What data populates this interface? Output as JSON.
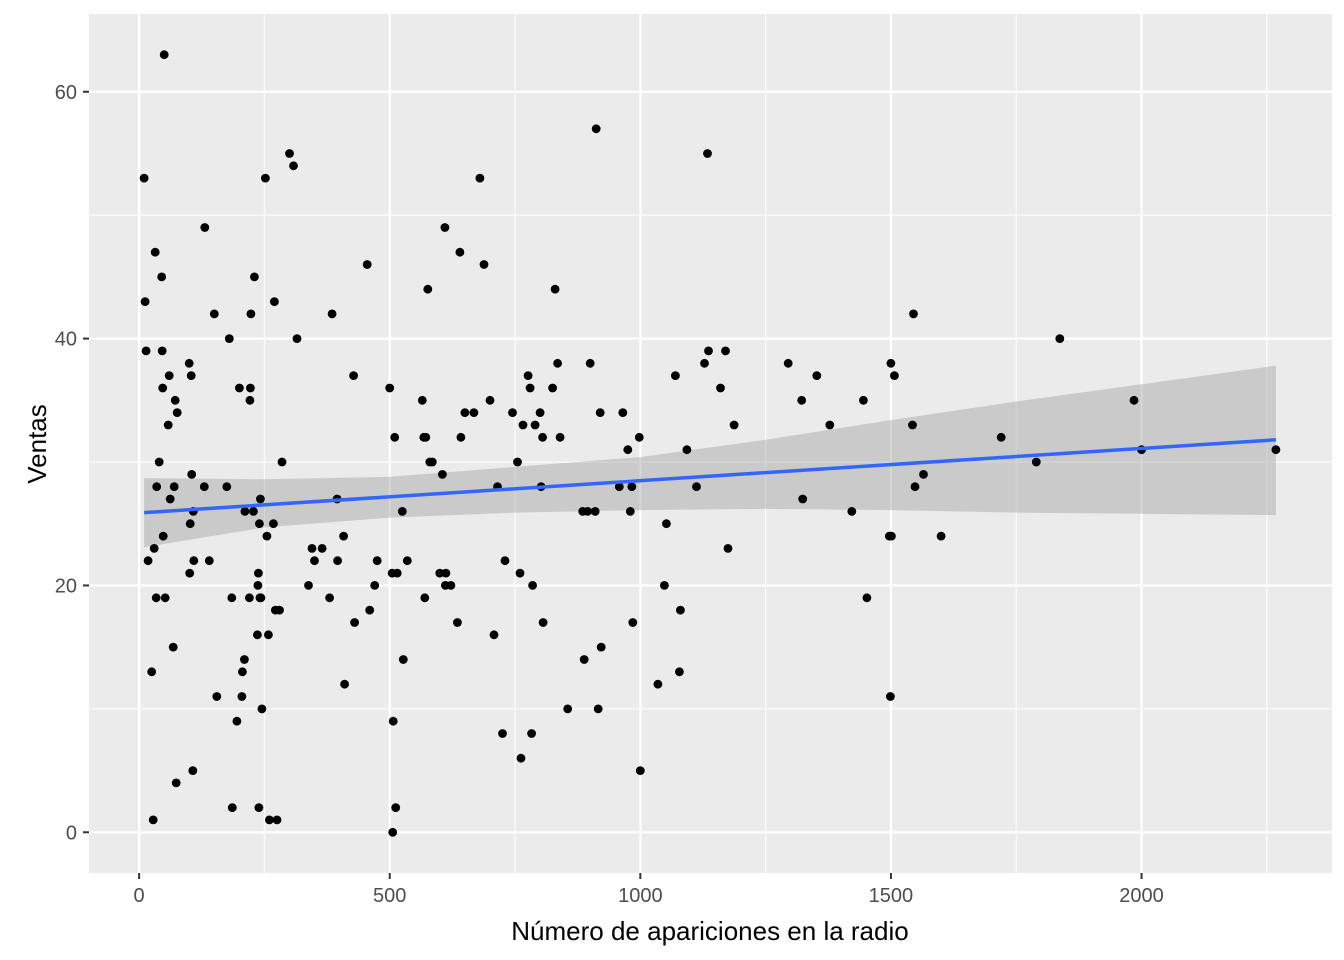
{
  "chart_data": {
    "type": "scatter",
    "title": "",
    "xlabel": "Número de apariciones en la radio",
    "ylabel": "Ventas",
    "xlim": [
      -100,
      2380
    ],
    "ylim": [
      -3.3,
      66.3
    ],
    "x_ticks": [
      0,
      500,
      1000,
      1500,
      2000
    ],
    "y_ticks": [
      0,
      20,
      40,
      60
    ],
    "x_tick_labels": [
      "0",
      "500",
      "1000",
      "1500",
      "2000"
    ],
    "y_tick_labels": [
      "0",
      "20",
      "40",
      "60"
    ],
    "grid": true,
    "legend": "none",
    "colors": {
      "panel": "#ebebeb",
      "grid": "#ffffff",
      "points": "#000000",
      "fit_line": "#3366ff",
      "confidence_band": "#c6c6c6"
    },
    "points": [
      [
        10,
        53
      ],
      [
        12,
        43
      ],
      [
        14,
        39
      ],
      [
        18,
        22
      ],
      [
        25,
        13
      ],
      [
        28,
        1
      ],
      [
        30,
        23
      ],
      [
        32,
        47
      ],
      [
        34,
        19
      ],
      [
        35,
        28
      ],
      [
        40,
        30
      ],
      [
        45,
        45
      ],
      [
        46,
        39
      ],
      [
        47,
        36
      ],
      [
        48,
        24
      ],
      [
        50,
        63
      ],
      [
        52,
        19
      ],
      [
        58,
        33
      ],
      [
        60,
        37
      ],
      [
        62,
        27
      ],
      [
        68,
        15
      ],
      [
        70,
        28
      ],
      [
        72,
        35
      ],
      [
        74,
        4
      ],
      [
        76,
        34
      ],
      [
        100,
        38
      ],
      [
        101,
        21
      ],
      [
        102,
        25
      ],
      [
        104,
        37
      ],
      [
        105,
        29
      ],
      [
        107,
        5
      ],
      [
        108,
        26
      ],
      [
        109,
        22
      ],
      [
        130,
        28
      ],
      [
        131,
        49
      ],
      [
        140,
        22
      ],
      [
        150,
        42
      ],
      [
        155,
        11
      ],
      [
        175,
        28
      ],
      [
        180,
        40
      ],
      [
        185,
        19
      ],
      [
        186,
        2
      ],
      [
        195,
        9
      ],
      [
        200,
        36
      ],
      [
        205,
        11
      ],
      [
        206,
        13
      ],
      [
        210,
        14
      ],
      [
        211,
        26
      ],
      [
        220,
        19
      ],
      [
        221,
        35
      ],
      [
        222,
        36
      ],
      [
        223,
        42
      ],
      [
        228,
        26
      ],
      [
        230,
        45
      ],
      [
        236,
        16
      ],
      [
        237,
        20
      ],
      [
        238,
        21
      ],
      [
        239,
        2
      ],
      [
        240,
        25
      ],
      [
        241,
        19
      ],
      [
        242,
        27
      ],
      [
        243,
        19
      ],
      [
        245,
        10
      ],
      [
        252,
        53
      ],
      [
        255,
        24
      ],
      [
        258,
        16
      ],
      [
        260,
        1
      ],
      [
        268,
        25
      ],
      [
        270,
        43
      ],
      [
        272,
        18
      ],
      [
        275,
        1
      ],
      [
        280,
        18
      ],
      [
        285,
        30
      ],
      [
        300,
        55
      ],
      [
        308,
        54
      ],
      [
        315,
        40
      ],
      [
        338,
        20
      ],
      [
        345,
        23
      ],
      [
        350,
        22
      ],
      [
        365,
        23
      ],
      [
        380,
        19
      ],
      [
        385,
        42
      ],
      [
        395,
        27
      ],
      [
        396,
        22
      ],
      [
        408,
        24
      ],
      [
        410,
        12
      ],
      [
        428,
        37
      ],
      [
        430,
        17
      ],
      [
        455,
        46
      ],
      [
        460,
        18
      ],
      [
        470,
        20
      ],
      [
        475,
        22
      ],
      [
        500,
        36
      ],
      [
        505,
        21
      ],
      [
        506,
        0
      ],
      [
        507,
        9
      ],
      [
        510,
        32
      ],
      [
        512,
        2
      ],
      [
        515,
        21
      ],
      [
        525,
        26
      ],
      [
        527,
        14
      ],
      [
        535,
        22
      ],
      [
        565,
        35
      ],
      [
        568,
        32
      ],
      [
        570,
        19
      ],
      [
        572,
        32
      ],
      [
        576,
        44
      ],
      [
        580,
        30
      ],
      [
        585,
        30
      ],
      [
        600,
        21
      ],
      [
        605,
        29
      ],
      [
        610,
        49
      ],
      [
        611,
        20
      ],
      [
        612,
        21
      ],
      [
        622,
        20
      ],
      [
        635,
        17
      ],
      [
        640,
        47
      ],
      [
        642,
        32
      ],
      [
        650,
        34
      ],
      [
        668,
        34
      ],
      [
        680,
        53
      ],
      [
        688,
        46
      ],
      [
        700,
        35
      ],
      [
        708,
        16
      ],
      [
        715,
        28
      ],
      [
        725,
        8
      ],
      [
        730,
        22
      ],
      [
        745,
        34
      ],
      [
        755,
        30
      ],
      [
        760,
        21
      ],
      [
        762,
        6
      ],
      [
        766,
        33
      ],
      [
        776,
        37
      ],
      [
        780,
        36
      ],
      [
        783,
        8
      ],
      [
        785,
        20
      ],
      [
        790,
        33
      ],
      [
        800,
        34
      ],
      [
        802,
        28
      ],
      [
        805,
        32
      ],
      [
        806,
        17
      ],
      [
        825,
        36
      ],
      [
        830,
        44
      ],
      [
        835,
        38
      ],
      [
        840,
        32
      ],
      [
        855,
        10
      ],
      [
        885,
        26
      ],
      [
        888,
        14
      ],
      [
        895,
        26
      ],
      [
        900,
        38
      ],
      [
        910,
        26
      ],
      [
        912,
        57
      ],
      [
        916,
        10
      ],
      [
        920,
        34
      ],
      [
        922,
        15
      ],
      [
        958,
        28
      ],
      [
        965,
        34
      ],
      [
        975,
        31
      ],
      [
        980,
        26
      ],
      [
        983,
        28
      ],
      [
        985,
        17
      ],
      [
        998,
        32
      ],
      [
        1000,
        5
      ],
      [
        1035,
        12
      ],
      [
        1048,
        20
      ],
      [
        1052,
        25
      ],
      [
        1070,
        37
      ],
      [
        1078,
        13
      ],
      [
        1080,
        18
      ],
      [
        1093,
        31
      ],
      [
        1112,
        28
      ],
      [
        1128,
        38
      ],
      [
        1134,
        55
      ],
      [
        1136,
        39
      ],
      [
        1160,
        36
      ],
      [
        1170,
        39
      ],
      [
        1175,
        23
      ],
      [
        1187,
        33
      ],
      [
        1295,
        38
      ],
      [
        1322,
        35
      ],
      [
        1324,
        27
      ],
      [
        1352,
        37
      ],
      [
        1378,
        33
      ],
      [
        1422,
        26
      ],
      [
        1445,
        35
      ],
      [
        1452,
        19
      ],
      [
        1497,
        24
      ],
      [
        1499,
        11
      ],
      [
        1500,
        38
      ],
      [
        1501,
        24
      ],
      [
        1507,
        37
      ],
      [
        1543,
        33
      ],
      [
        1545,
        42
      ],
      [
        1548,
        28
      ],
      [
        1565,
        29
      ],
      [
        1600,
        24
      ],
      [
        1720,
        32
      ],
      [
        1790,
        30
      ],
      [
        1837,
        40
      ],
      [
        1985,
        35
      ],
      [
        2000,
        31
      ],
      [
        2268,
        31
      ]
    ],
    "fit_line": {
      "x": [
        10,
        2268
      ],
      "y": [
        25.9,
        31.8
      ]
    },
    "confidence_band": {
      "x": [
        10,
        250,
        500,
        750,
        1000,
        1250,
        1500,
        1750,
        2000,
        2268
      ],
      "lower": [
        23.1,
        24.7,
        25.5,
        25.9,
        26.1,
        26.2,
        26.1,
        25.9,
        25.8,
        25.7
      ],
      "upper": [
        28.7,
        28.6,
        28.8,
        29.6,
        30.4,
        31.8,
        33.4,
        34.9,
        36.3,
        37.8
      ]
    }
  }
}
